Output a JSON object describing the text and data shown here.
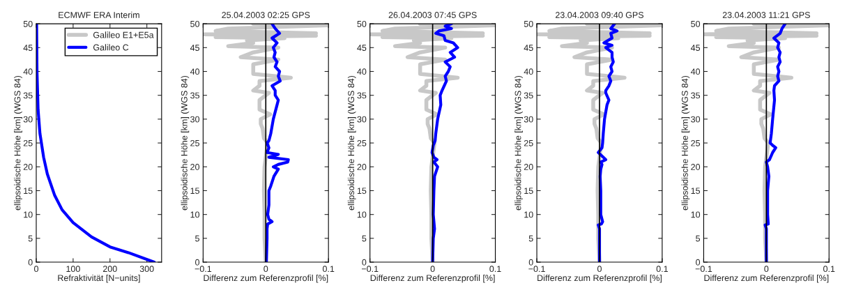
{
  "chart_data": [
    {
      "type": "line",
      "title": "ECMWF ERA Interim",
      "xlabel": "Refraktivität [N−units]",
      "ylabel": "ellipsoidische Höhe [km] (WGS 84)",
      "xlim": [
        0,
        340
      ],
      "xticks": [
        0,
        100,
        200,
        300
      ],
      "ylim": [
        0,
        50
      ],
      "yticks": [
        0,
        5,
        10,
        15,
        20,
        25,
        30,
        35,
        40,
        45,
        50
      ],
      "legend": "top right",
      "series": [
        {
          "name": "Galileo E1+E5a",
          "color": "#c8c8c8",
          "x": [
            null
          ],
          "values": [
            null
          ]
        },
        {
          "name": "Galileo C",
          "color": "#0000ff",
          "x": [
            320,
            250,
            200,
            150,
            100,
            70,
            50,
            30,
            20,
            10,
            5,
            2,
            1
          ],
          "values": [
            0,
            2,
            3.2,
            5.3,
            8.3,
            11,
            14,
            18.5,
            22,
            27,
            32,
            40,
            50
          ]
        }
      ]
    },
    {
      "type": "line",
      "title": "25.04.2003 02:25 GPS",
      "xlabel": "Differenz zum Referenzprofil [%]",
      "ylabel": "ellipsoidische Höhe [km] (WGS 84)",
      "xlim": [
        -0.1,
        0.1
      ],
      "xticks": [
        -0.1,
        0,
        0.1
      ],
      "ylim": [
        0,
        50
      ],
      "yticks": [
        0,
        5,
        10,
        15,
        20,
        25,
        30,
        35,
        40,
        45,
        50
      ],
      "ref_lines": [
        {
          "axis": "x",
          "value": 0,
          "color": "#000000"
        }
      ],
      "series": [
        {
          "color": "#c8c8c8",
          "x": [
            -0.02,
            0.1,
            -0.06,
            -0.08,
            0.08,
            -0.1,
            0.08,
            -0.08,
            0.03,
            -0.03,
            -0.02,
            -0.06,
            0.02,
            -0.02,
            -0.04,
            0.02,
            -0.02,
            -0.02,
            -0.02,
            0.04,
            -0.01,
            -0.01,
            -0.02,
            0.005,
            -0.01,
            -0.01,
            0.007,
            -0.008,
            -0.008,
            -0.005,
            -0.003,
            0.003,
            -0.002,
            -0.003,
            -0.002,
            -0.002,
            0
          ],
          "values": [
            50,
            49.7,
            49,
            48.5,
            48,
            47.8,
            47.5,
            47.2,
            47,
            46.5,
            46,
            45.3,
            45,
            44,
            43,
            42.5,
            41.5,
            40.5,
            39.5,
            38.7,
            38,
            37,
            36,
            35.5,
            34,
            32,
            31,
            30,
            29,
            28,
            26,
            25,
            20,
            15,
            10,
            5,
            0
          ]
        },
        {
          "color": "#0000ff",
          "x": [
            0.01,
            0.015,
            0.022,
            0.01,
            0.018,
            0.012,
            0.015,
            0.013,
            0.018,
            0.015,
            0.022,
            0.02,
            0.023,
            0.01,
            0.015,
            0.015,
            0.02,
            0.018,
            0.012,
            0.008,
            0.005,
            0.002,
            0.005,
            0.002,
            0.02,
            0.005,
            0.036,
            0.035,
            0.02,
            0.012,
            0.02,
            0.013,
            0.008,
            0.005,
            0.005,
            0.003,
            0.005,
            0.01,
            0.003,
            0.002,
            0.002,
            0.001
          ],
          "values": [
            50,
            49,
            48,
            47,
            46,
            45,
            44,
            43,
            42,
            41,
            40,
            39,
            38,
            37,
            36,
            35,
            34,
            33,
            30,
            27,
            25.5,
            25,
            24,
            23,
            22.6,
            22,
            21.5,
            21,
            20.5,
            20,
            19.5,
            18,
            16,
            15,
            12,
            10,
            9,
            8.5,
            8,
            7,
            5,
            0.2
          ]
        }
      ]
    },
    {
      "type": "line",
      "title": "26.04.2003 07:45 GPS",
      "xlabel": "Differenz zum Referenzprofil [%]",
      "ylabel": "ellipsoidische Höhe [km] (WGS 84)",
      "xlim": [
        -0.1,
        0.1
      ],
      "xticks": [
        -0.1,
        0,
        0.1
      ],
      "ylim": [
        0,
        50
      ],
      "yticks": [
        0,
        5,
        10,
        15,
        20,
        25,
        30,
        35,
        40,
        45,
        50
      ],
      "ref_lines": [
        {
          "axis": "x",
          "value": 0,
          "color": "#000000"
        }
      ],
      "series": [
        {
          "color": "#c8c8c8",
          "x": [
            -0.02,
            0.1,
            -0.06,
            -0.08,
            0.08,
            -0.1,
            0.08,
            -0.08,
            0.03,
            -0.03,
            -0.02,
            -0.06,
            0.02,
            -0.02,
            -0.04,
            0.02,
            -0.02,
            -0.02,
            -0.02,
            0.04,
            -0.01,
            -0.01,
            -0.02,
            0.005,
            -0.01,
            -0.01,
            0.007,
            -0.008,
            -0.008,
            -0.005,
            -0.003,
            0.003,
            -0.002,
            -0.003,
            -0.002,
            -0.002,
            0
          ],
          "values": [
            50,
            49.7,
            49,
            48.5,
            48,
            47.8,
            47.5,
            47.2,
            47,
            46.5,
            46,
            45.3,
            45,
            44,
            43,
            42.5,
            41.5,
            40.5,
            39.5,
            38.7,
            38,
            37,
            36,
            35.5,
            34,
            32,
            31,
            30,
            29,
            28,
            26,
            25,
            20,
            15,
            10,
            5,
            0
          ]
        },
        {
          "color": "#0000ff",
          "x": [
            0.03,
            0.02,
            0.03,
            0.01,
            0.005,
            0.018,
            0.02,
            0.033,
            0.04,
            0.028,
            0.035,
            0.02,
            0.028,
            0.025,
            0.02,
            0.022,
            0.015,
            0.012,
            0.013,
            0.008,
            0.005,
            0.004,
            0.001,
            -0.001,
            0.002,
            0.007,
            0.002,
            0.008,
            0.003,
            0.002,
            0.001,
            0.003,
            0.001,
            0
          ],
          "values": [
            50,
            49.5,
            49,
            48.5,
            48,
            47.5,
            46.5,
            46,
            45,
            44,
            43,
            42,
            41,
            40,
            39,
            38,
            36,
            35,
            33,
            30,
            27,
            25.5,
            24.5,
            23,
            22,
            21.5,
            21,
            20,
            18,
            15,
            10,
            7,
            5,
            0.2
          ]
        }
      ]
    },
    {
      "type": "line",
      "title": "23.04.2003 09:40 GPS",
      "xlabel": "Differenz zum Referenzprofil [%]",
      "ylabel": "ellipsoidische Höhe [km] (WGS 84)",
      "xlim": [
        -0.1,
        0.1
      ],
      "xticks": [
        -0.1,
        0,
        0.1
      ],
      "ylim": [
        0,
        50
      ],
      "yticks": [
        0,
        5,
        10,
        15,
        20,
        25,
        30,
        35,
        40,
        45,
        50
      ],
      "ref_lines": [
        {
          "axis": "x",
          "value": 0,
          "color": "#000000"
        }
      ],
      "series": [
        {
          "color": "#c8c8c8",
          "x": [
            -0.02,
            0.1,
            -0.06,
            -0.08,
            0.08,
            -0.1,
            0.08,
            -0.08,
            0.03,
            -0.03,
            -0.02,
            -0.06,
            0.02,
            -0.02,
            -0.04,
            0.02,
            -0.02,
            -0.02,
            -0.02,
            0.04,
            -0.01,
            -0.01,
            -0.02,
            0.005,
            -0.01,
            -0.01,
            0.007,
            -0.008,
            -0.008,
            -0.005,
            -0.003,
            0.003,
            -0.002,
            -0.003,
            -0.002,
            -0.002,
            0
          ],
          "values": [
            50,
            49.7,
            49,
            48.5,
            48,
            47.8,
            47.5,
            47.2,
            47,
            46.5,
            46,
            45.3,
            45,
            44,
            43,
            42.5,
            41.5,
            40.5,
            39.5,
            38.7,
            38,
            37,
            36,
            35.5,
            34,
            32,
            31,
            30,
            29,
            28,
            26,
            25,
            20,
            15,
            10,
            5,
            0
          ]
        },
        {
          "color": "#0000ff",
          "x": [
            0.024,
            0.018,
            0.028,
            0.018,
            0.02,
            0.007,
            0.02,
            0.01,
            0.02,
            0.02,
            0.022,
            0.018,
            0.02,
            0.015,
            0.018,
            0.015,
            0.01,
            0.01,
            0.015,
            0.012,
            0.008,
            0.006,
            0.005,
            0.004,
            -0.002,
            0.006,
            0.01,
            0.002,
            0.004,
            0.002,
            0.001,
            0.002,
            0.002,
            0.005,
            0.003,
            -0.002,
            0,
            0,
            0
          ],
          "values": [
            50,
            49,
            48.5,
            48,
            47,
            46,
            45.5,
            45,
            44,
            43,
            42,
            41,
            40,
            39,
            38,
            37,
            36,
            35.5,
            34,
            33,
            30,
            27,
            25,
            24,
            23,
            22,
            21.5,
            21,
            20.5,
            19.5,
            18,
            15,
            10,
            8.5,
            8,
            7.8,
            7,
            5,
            0.2
          ]
        }
      ]
    },
    {
      "type": "line",
      "title": "23.04.2003 11:21 GPS",
      "xlabel": "Differenz zum Referenzprofil [%]",
      "ylabel": "ellipsoidische Höhe [km] (WGS 84)",
      "xlim": [
        -0.1,
        0.1
      ],
      "xticks": [
        -0.1,
        0,
        0.1
      ],
      "ylim": [
        0,
        50
      ],
      "yticks": [
        0,
        5,
        10,
        15,
        20,
        25,
        30,
        35,
        40,
        45,
        50
      ],
      "ref_lines": [
        {
          "axis": "x",
          "value": 0,
          "color": "#000000"
        }
      ],
      "series": [
        {
          "color": "#c8c8c8",
          "x": [
            -0.02,
            0.1,
            -0.06,
            -0.08,
            0.08,
            -0.1,
            0.08,
            -0.08,
            0.03,
            -0.03,
            -0.02,
            -0.06,
            0.02,
            -0.02,
            -0.04,
            0.02,
            -0.02,
            -0.02,
            -0.02,
            0.04,
            -0.01,
            -0.01,
            -0.02,
            0.005,
            -0.01,
            -0.01,
            0.007,
            -0.008,
            -0.008,
            -0.005,
            -0.003,
            0.003,
            -0.002,
            -0.003,
            -0.002,
            -0.002,
            0
          ],
          "values": [
            50,
            49.7,
            49,
            48.5,
            48,
            47.8,
            47.5,
            47.2,
            47,
            46.5,
            46,
            45.3,
            45,
            44,
            43,
            42.5,
            41.5,
            40.5,
            39.5,
            38.7,
            38,
            37,
            36,
            35.5,
            34,
            32,
            31,
            30,
            29,
            28,
            26,
            25,
            20,
            15,
            10,
            5,
            0
          ]
        },
        {
          "color": "#0000ff",
          "x": [
            0.03,
            0.025,
            0.022,
            0.012,
            0.02,
            0.018,
            0.022,
            0.02,
            0.022,
            0.018,
            0.02,
            0.018,
            0.02,
            0.013,
            0.012,
            0.013,
            0.01,
            0.008,
            0.006,
            0.01,
            0.015,
            0.01,
            0.005,
            0,
            0.002,
            0.004,
            0.002,
            0.002,
            0.003,
            -0.002,
            0,
            0
          ],
          "values": [
            50,
            49,
            48,
            47,
            46,
            45,
            44,
            43,
            42,
            41,
            40,
            39,
            38,
            37,
            36,
            34,
            30,
            27,
            25,
            24.5,
            24,
            23,
            21.5,
            21,
            20,
            18,
            15,
            10,
            8,
            7.8,
            7,
            0.2
          ]
        }
      ]
    }
  ]
}
